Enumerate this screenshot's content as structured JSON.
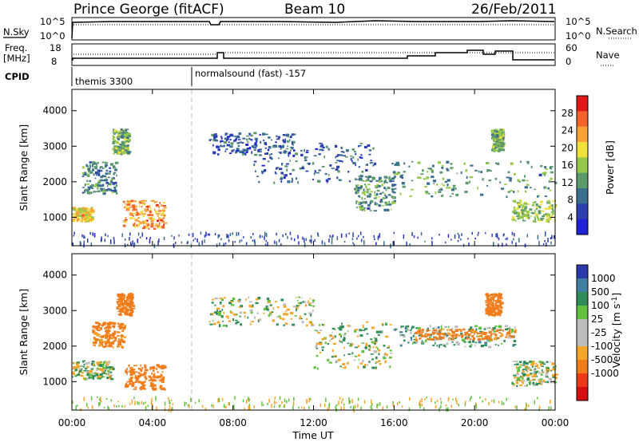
{
  "header": {
    "station": "Prince George (fitACF)",
    "beam": "Beam 10",
    "date": "26/Feb/2011"
  },
  "top_panels": {
    "nsky_label": "N.Sky",
    "nsky_ticks": [
      "10^5",
      "10^0"
    ],
    "nsearch_label": "N.Search",
    "nsearch_ticks": [
      "10^5",
      "10^0"
    ],
    "freq_label": "Freq.",
    "freq_unit": "[MHz]",
    "freq_ticks": [
      "18",
      "8"
    ],
    "nave_label": "Nave",
    "nave_ticks": [
      "60",
      "0"
    ],
    "cpid_label": "CPID",
    "cpid_modes": [
      "themis 3300",
      "normalsound (fast) -157"
    ]
  },
  "colors": {
    "power": [
      "#1f22d6",
      "#2b3fb0",
      "#3b6f8e",
      "#5b9a6a",
      "#93c84a",
      "#f0e03a",
      "#f9a23a",
      "#f4622c",
      "#e01818"
    ],
    "velocity": [
      "#2a3aa8",
      "#3f7f9f",
      "#2f8c58",
      "#62c23e",
      "#bdbdbd",
      "#bdbdbd",
      "#f5a62a",
      "#f07d1c",
      "#ea3a1a",
      "#d50f0f"
    ]
  },
  "chart_data": [
    {
      "type": "heatmap",
      "panel": "power",
      "ylabel": "Slant Range [km]",
      "ylim": [
        200,
        4600
      ],
      "y_ticks": [
        1000,
        2000,
        3000,
        4000
      ],
      "x_ticks": [
        "00:00",
        "04:00",
        "08:00",
        "12:00",
        "16:00",
        "20:00",
        "00:00"
      ],
      "xlim_hours": [
        0,
        24
      ],
      "colorbar": {
        "label": "Power [dB]",
        "ticks": [
          4,
          8,
          12,
          16,
          20,
          24,
          28
        ],
        "range": [
          0,
          32
        ]
      },
      "cpid_change_hour": 5.95,
      "echo_regions": [
        {
          "t": [
            0.0,
            1.0
          ],
          "r": [
            900,
            1300
          ],
          "level": 20
        },
        {
          "t": [
            0.5,
            2.2
          ],
          "r": [
            1700,
            2600
          ],
          "level": 10
        },
        {
          "t": [
            2.0,
            2.8
          ],
          "r": [
            2800,
            3500
          ],
          "level": 14
        },
        {
          "t": [
            2.5,
            4.6
          ],
          "r": [
            700,
            1500
          ],
          "level": 24
        },
        {
          "t": [
            6.8,
            11.0
          ],
          "r": [
            2800,
            3400
          ],
          "level": 7
        },
        {
          "t": [
            9.0,
            15.0
          ],
          "r": [
            2000,
            3100
          ],
          "level": 8
        },
        {
          "t": [
            14.0,
            16.0
          ],
          "r": [
            1200,
            2200
          ],
          "level": 12
        },
        {
          "t": [
            15.8,
            24.0
          ],
          "r": [
            1600,
            2600
          ],
          "level": 12
        },
        {
          "t": [
            21.8,
            24.0
          ],
          "r": [
            900,
            1500
          ],
          "level": 16
        },
        {
          "t": [
            20.8,
            21.4
          ],
          "r": [
            2900,
            3500
          ],
          "level": 14
        }
      ]
    },
    {
      "type": "heatmap",
      "panel": "velocity",
      "ylabel": "Slant Range [km]",
      "ylim": [
        200,
        4600
      ],
      "y_ticks": [
        1000,
        2000,
        3000,
        4000
      ],
      "x_ticks": [
        "00:00",
        "04:00",
        "08:00",
        "12:00",
        "16:00",
        "20:00",
        "00:00"
      ],
      "xlim_hours": [
        0,
        24
      ],
      "xlabel": "Time UT",
      "colorbar": {
        "label": "Velocity [m s",
        "label_sup": "-1",
        "label_end": "]",
        "ticks": [
          1000,
          500,
          100,
          25,
          -25,
          -100,
          -500,
          -1000
        ]
      },
      "cpid_change_hour": 5.95,
      "echo_regions": [
        {
          "t": [
            0.0,
            2.0
          ],
          "r": [
            1100,
            1600
          ],
          "level": 0
        },
        {
          "t": [
            1.0,
            2.6
          ],
          "r": [
            2000,
            2700
          ],
          "level": -150
        },
        {
          "t": [
            2.2,
            3.0
          ],
          "r": [
            2900,
            3500
          ],
          "level": -200
        },
        {
          "t": [
            2.6,
            4.6
          ],
          "r": [
            800,
            1500
          ],
          "level": -300
        },
        {
          "t": [
            6.8,
            12.0
          ],
          "r": [
            2600,
            3400
          ],
          "level": 0
        },
        {
          "t": [
            12.0,
            15.8
          ],
          "r": [
            1400,
            2700
          ],
          "level": 0
        },
        {
          "t": [
            15.8,
            22.0
          ],
          "r": [
            2000,
            2600
          ],
          "level": 50
        },
        {
          "t": [
            17.0,
            22.0
          ],
          "r": [
            2200,
            2500
          ],
          "level": -150
        },
        {
          "t": [
            21.8,
            24.0
          ],
          "r": [
            900,
            1600
          ],
          "level": 0
        },
        {
          "t": [
            20.5,
            21.3
          ],
          "r": [
            2900,
            3500
          ],
          "level": -400
        }
      ]
    }
  ]
}
